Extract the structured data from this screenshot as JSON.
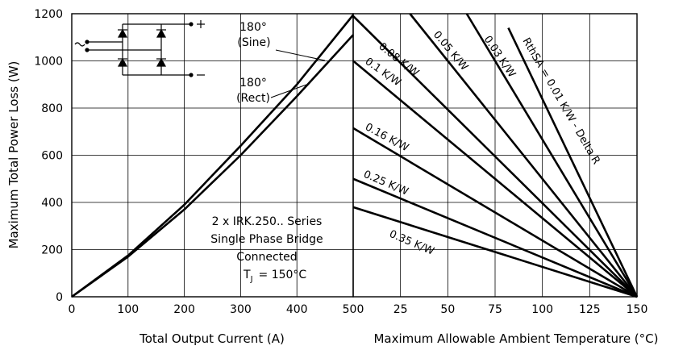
{
  "chart_data": [
    {
      "type": "line",
      "ylabel": "Maximum Total Power Loss (W)",
      "xlabel": "Total Output Current (A)",
      "xlim": [
        0,
        500
      ],
      "ylim": [
        0,
        1200
      ],
      "x_ticks": [
        "0",
        "100",
        "200",
        "300",
        "400",
        "500"
      ],
      "y_ticks": [
        "0",
        "200",
        "400",
        "600",
        "800",
        "1000",
        "1200"
      ],
      "grid": true,
      "series": [
        {
          "name": "180° (Sine)",
          "x": [
            0,
            100,
            200,
            300,
            400,
            500
          ],
          "y": [
            0,
            175,
            390,
            640,
            900,
            1195
          ]
        },
        {
          "name": "180° (Rect)",
          "x": [
            0,
            100,
            200,
            300,
            400,
            500
          ],
          "y": [
            0,
            170,
            370,
            600,
            850,
            1110
          ]
        }
      ],
      "labels": [
        {
          "line1": "180°",
          "line2": "(Sine)"
        },
        {
          "line1": "180°",
          "line2": "(Rect)"
        }
      ],
      "annotation": {
        "lines": [
          "2 x IRK.250.. Series",
          "Single Phase Bridge",
          "Connected"
        ],
        "tj_prefix": "T",
        "tj_sub": "J",
        "tj_value": "= 150°C"
      }
    },
    {
      "type": "line",
      "xlabel": "Maximum Allowable Ambient Temperature (°C)",
      "xlim": [
        0,
        150
      ],
      "ylim": [
        0,
        1200
      ],
      "x_ticks": [
        "25",
        "50",
        "75",
        "100",
        "125",
        "150"
      ],
      "grid": true,
      "series": [
        {
          "name": "0.35 K/W",
          "x": [
            0,
            150
          ],
          "y": [
            380,
            0
          ]
        },
        {
          "name": "0.25 K/W",
          "x": [
            0,
            150
          ],
          "y": [
            500,
            0
          ]
        },
        {
          "name": "0.16 K/W",
          "x": [
            0,
            150
          ],
          "y": [
            715,
            0
          ]
        },
        {
          "name": "0.1 K/W",
          "x": [
            0,
            150
          ],
          "y": [
            1000,
            0
          ]
        },
        {
          "name": "0.08 K/W",
          "x": [
            0,
            150
          ],
          "y": [
            1190,
            0
          ]
        },
        {
          "name": "0.05 K/W",
          "x": [
            30,
            150
          ],
          "y": [
            1200,
            0
          ]
        },
        {
          "name": "0.03 K/W",
          "x": [
            60,
            150
          ],
          "y": [
            1200,
            0
          ]
        },
        {
          "name": "RthSA = 0.01 K/W - Delta R",
          "x": [
            82,
            150
          ],
          "y": [
            1140,
            0
          ]
        }
      ]
    }
  ]
}
